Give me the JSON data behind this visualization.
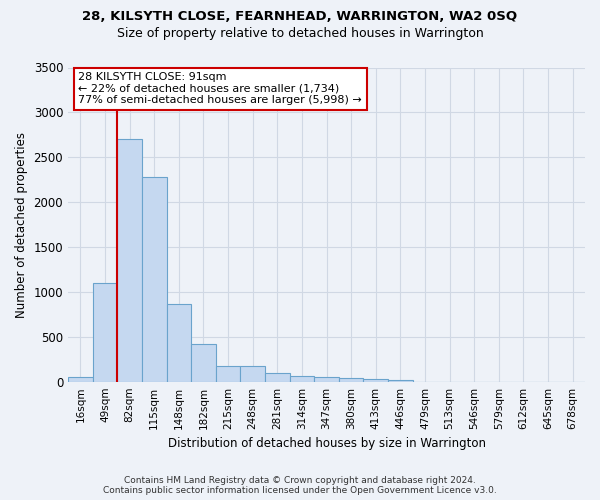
{
  "title": "28, KILSYTH CLOSE, FEARNHEAD, WARRINGTON, WA2 0SQ",
  "subtitle": "Size of property relative to detached houses in Warrington",
  "xlabel": "Distribution of detached houses by size in Warrington",
  "ylabel": "Number of detached properties",
  "footer_line1": "Contains HM Land Registry data © Crown copyright and database right 2024.",
  "footer_line2": "Contains public sector information licensed under the Open Government Licence v3.0.",
  "bar_labels": [
    "16sqm",
    "49sqm",
    "82sqm",
    "115sqm",
    "148sqm",
    "182sqm",
    "215sqm",
    "248sqm",
    "281sqm",
    "314sqm",
    "347sqm",
    "380sqm",
    "413sqm",
    "446sqm",
    "479sqm",
    "513sqm",
    "546sqm",
    "579sqm",
    "612sqm",
    "645sqm",
    "678sqm"
  ],
  "bar_values": [
    55,
    1100,
    2700,
    2280,
    870,
    420,
    175,
    170,
    95,
    65,
    50,
    45,
    30,
    20,
    0,
    0,
    0,
    0,
    0,
    0,
    0
  ],
  "bar_color": "#c5d8f0",
  "bar_edge_color": "#6aa3cc",
  "grid_color": "#d0d8e4",
  "background_color": "#eef2f8",
  "vline_color": "#cc0000",
  "annotation_text": "28 KILSYTH CLOSE: 91sqm\n← 22% of detached houses are smaller (1,734)\n77% of semi-detached houses are larger (5,998) →",
  "annotation_box_color": "#ffffff",
  "annotation_box_edge": "#cc0000",
  "ylim": [
    0,
    3500
  ],
  "yticks": [
    0,
    500,
    1000,
    1500,
    2000,
    2500,
    3000,
    3500
  ]
}
